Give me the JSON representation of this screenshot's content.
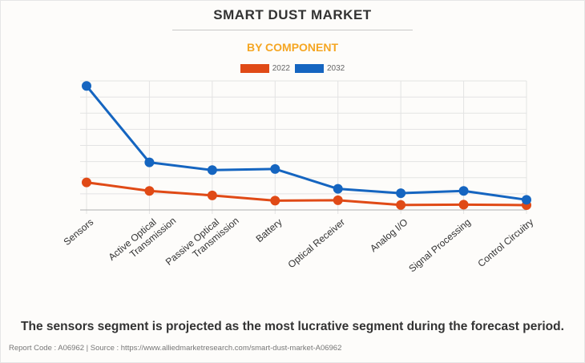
{
  "header": {
    "title": "SMART DUST MARKET",
    "subtitle": "BY COMPONENT"
  },
  "footer": {
    "caption": "The sensors segment is projected as the most lucrative segment during the forecast period.",
    "source": "Report Code : A06962  |  Source : https://www.alliedmarketresearch.com/smart-dust-market-A06962"
  },
  "colors": {
    "series_2022": "#e04a16",
    "series_2032": "#1565c0",
    "subtitle": "#f5a623",
    "grid": "#e3e3e3",
    "axis": "#b0b0b0"
  },
  "chart_data": {
    "type": "line",
    "title": "SMART DUST MARKET",
    "subtitle": "BY COMPONENT",
    "xlabel": "",
    "ylabel": "",
    "y_tick_labels_shown": false,
    "ylim": [
      0,
      8
    ],
    "y_units_note": "relative (gridline units; no axis values shown)",
    "grid": true,
    "legend_position": "top-center",
    "categories": [
      "Sensors",
      "Active Optical Transmission",
      "Passive Optical Transmission",
      "Battery",
      "Optical Receiver",
      "Analog I/O",
      "Signal Processing",
      "Control Circuitry"
    ],
    "category_lines": [
      [
        "Sensors"
      ],
      [
        "Active Optical",
        "Transmission"
      ],
      [
        "Passive Optical",
        "Transmission"
      ],
      [
        "Battery"
      ],
      [
        "Optical Receiver"
      ],
      [
        "Analog I/O"
      ],
      [
        "Signal Processing"
      ],
      [
        "Control Circuitry"
      ]
    ],
    "series": [
      {
        "name": "2022",
        "color": "#e04a16",
        "values": [
          1.71,
          1.18,
          0.9,
          0.58,
          0.6,
          0.31,
          0.33,
          0.3
        ]
      },
      {
        "name": "2032",
        "color": "#1565c0",
        "values": [
          7.69,
          2.95,
          2.47,
          2.54,
          1.31,
          1.04,
          1.18,
          0.63
        ]
      }
    ]
  }
}
